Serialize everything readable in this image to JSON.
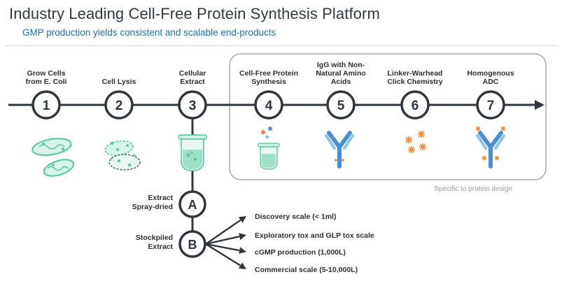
{
  "header": {
    "title": "Industry Leading Cell-Free Protein Synthesis Platform",
    "subtitle": "GMP production yields consistent and scalable end-products"
  },
  "steps": [
    {
      "number": "1",
      "label_lines": [
        "Grow Cells",
        "from E. Coli"
      ]
    },
    {
      "number": "2",
      "label_lines": [
        "Cell Lysis"
      ]
    },
    {
      "number": "3",
      "label_lines": [
        "Cellular",
        "Extract"
      ]
    },
    {
      "number": "4",
      "label_lines": [
        "Cell-Free Protein",
        "Synthesis"
      ]
    },
    {
      "number": "5",
      "label_lines": [
        "IgG with Non-",
        "Natural Amino",
        "Acids"
      ]
    },
    {
      "number": "6",
      "label_lines": [
        "Linker-Warhead",
        "Click Chemistry"
      ]
    },
    {
      "number": "7",
      "label_lines": [
        "Homogenous",
        "ADC"
      ]
    }
  ],
  "box_caption": "Specific to protein design",
  "branch": [
    {
      "letter": "A",
      "label_lines": [
        "Extract",
        "Spray-dried"
      ]
    },
    {
      "letter": "B",
      "label_lines": [
        "Stockpiled",
        "Extract"
      ]
    }
  ],
  "scales": [
    "Discovery scale (< 1ml)",
    "Exploratory tox and GLP tox scale",
    "cGMP production (1,000L)",
    "Commercial scale (5-10,000L)"
  ],
  "colors": {
    "line": "#2f3640",
    "node_fill": "#ffffff",
    "cell_green": "#52c7a0",
    "antibody_blue": "#4a8fd0",
    "antibody_light": "#8ec3ea",
    "orange": "#f08a3a",
    "box_border": "#9a9a9a"
  }
}
